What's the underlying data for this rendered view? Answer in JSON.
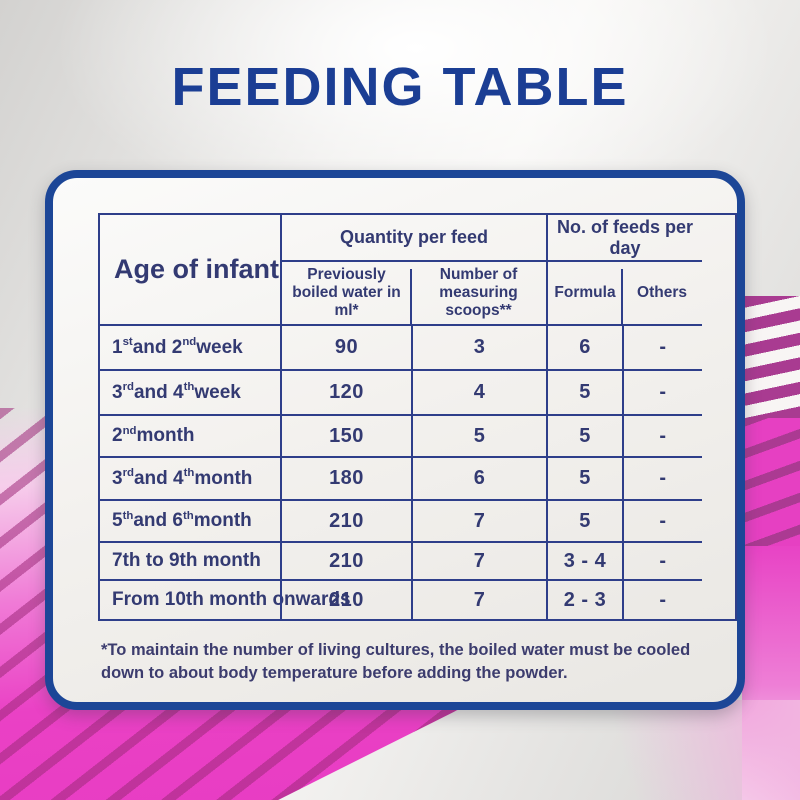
{
  "title": "FEEDING TABLE",
  "colors": {
    "title_blue": "#1b3e94",
    "panel_border_blue": "#1c4697",
    "table_line_navy": "#2e3e8a",
    "text_navy": "#333a72",
    "pink_bright": "#e83cc3",
    "magenta_dark": "#a93b91",
    "pink_light": "#f6cdeb"
  },
  "table": {
    "age_header": "Age of infant",
    "group_headers": [
      "Quantity per feed",
      "No. of feeds per day"
    ],
    "sub_headers": [
      "Previously boiled water in ml*",
      "Number of measuring scoops**",
      "Formula",
      "Others"
    ],
    "rows": [
      {
        "age": "1{st} and 2{nd} week",
        "water": "90",
        "scoops": "3",
        "formula": "6",
        "others": "-"
      },
      {
        "age": "3{rd} and 4{th} week",
        "water": "120",
        "scoops": "4",
        "formula": "5",
        "others": "-"
      },
      {
        "age": "2{nd} month",
        "water": "150",
        "scoops": "5",
        "formula": "5",
        "others": "-"
      },
      {
        "age": "3{rd} and 4{th} month",
        "water": "180",
        "scoops": "6",
        "formula": "5",
        "others": "-"
      },
      {
        "age": "5{th} and 6{th} month",
        "water": "210",
        "scoops": "7",
        "formula": "5",
        "others": "-"
      },
      {
        "age": "7th to 9th month",
        "water": "210",
        "scoops": "7",
        "formula": "3 - 4",
        "others": "-"
      },
      {
        "age": "From 10th month onwards",
        "water": "210",
        "scoops": "7",
        "formula": "2 - 3",
        "others": "-"
      }
    ]
  },
  "footnote": "*To maintain the number of living cultures, the boiled water must be cooled down to about body temperature before adding the powder."
}
